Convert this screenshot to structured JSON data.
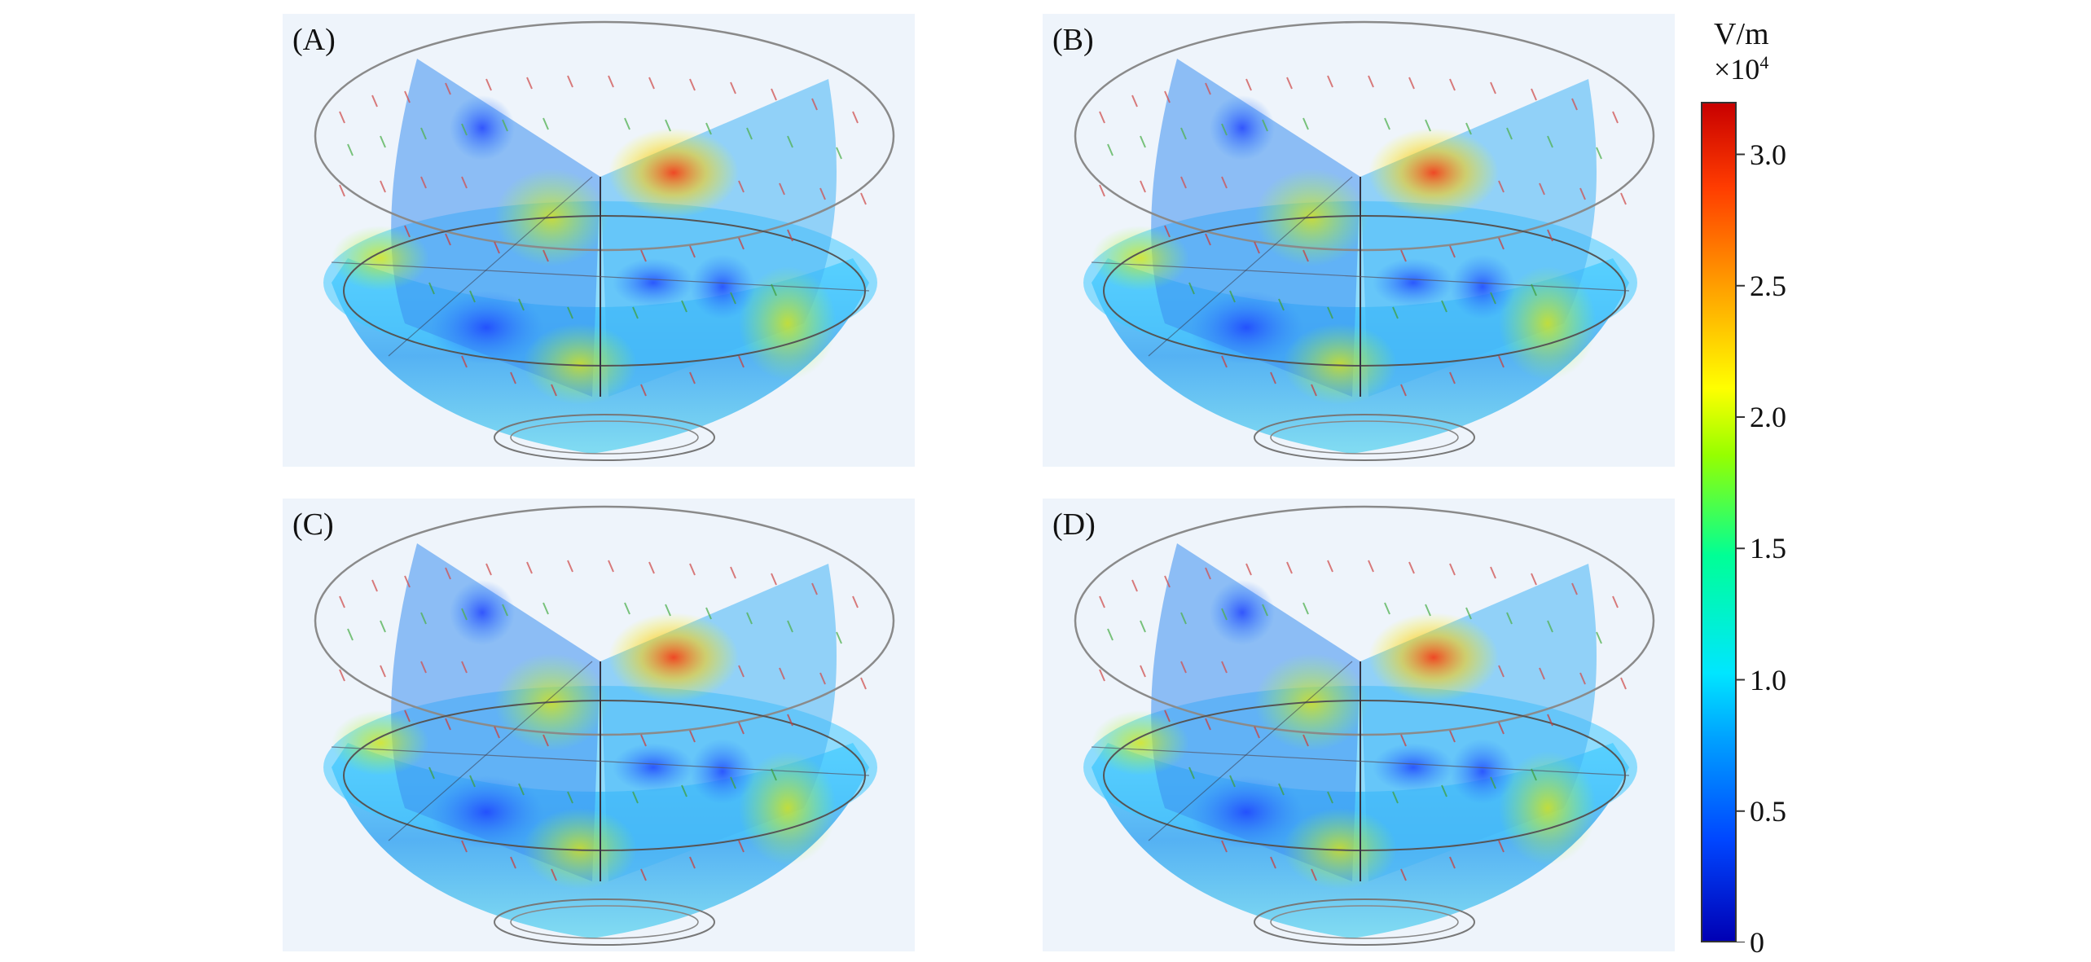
{
  "panels": [
    {
      "label": "(A)"
    },
    {
      "label": "(B)"
    },
    {
      "label": "(C)"
    },
    {
      "label": "(D)"
    }
  ],
  "colorbar": {
    "unit": "V/m",
    "multiplier_base": "×10",
    "multiplier_exp": "4",
    "ticks": [
      {
        "label": "3.0",
        "value": 3.0
      },
      {
        "label": "2.5",
        "value": 2.5
      },
      {
        "label": "2.0",
        "value": 2.0
      },
      {
        "label": "1.5",
        "value": 1.5
      },
      {
        "label": "1.0",
        "value": 1.0
      },
      {
        "label": "0.5",
        "value": 0.5
      },
      {
        "label": "0",
        "value": 0
      }
    ],
    "range": [
      0,
      3.2
    ],
    "colors": [
      "#0000b4",
      "#0046ff",
      "#00a0ff",
      "#00e6ff",
      "#00ff96",
      "#96ff00",
      "#ffff00",
      "#ffa000",
      "#ff3c00",
      "#c80000"
    ]
  }
}
